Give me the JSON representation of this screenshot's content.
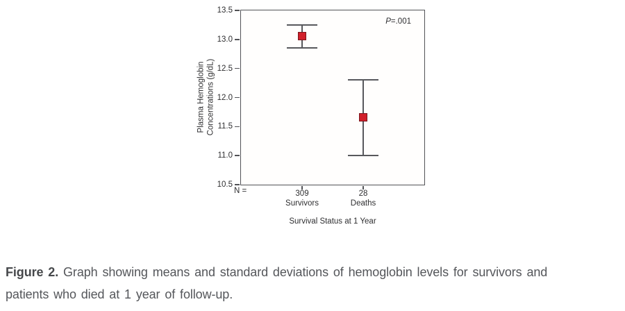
{
  "colors": {
    "axis": "#515256",
    "error_bar": "#57585c",
    "marker_fill": "#d1202b",
    "marker_border": "#7a151c",
    "tick_text": "#2e2e30",
    "caption_text": "#54565a",
    "background": "#ffffff"
  },
  "chart_data": {
    "type": "scatter",
    "subtype": "means-with-standard-deviation-error-bars",
    "title": "",
    "xlabel": "Survival Status at 1 Year",
    "ylabel": "Plasma Hemoglobin Concentrations (g/dL)",
    "ylabel_lines": [
      "Plasma Hemoglobin",
      "Concentrations (g/dL)"
    ],
    "ylim": [
      10.5,
      13.5
    ],
    "yticks": [
      "13.5",
      "13.0",
      "12.5",
      "12.0",
      "11.5",
      "11.0",
      "10.5"
    ],
    "grid": false,
    "legend": "none",
    "n_prefix": "N =",
    "annotation": {
      "p_italic": "P",
      "p_rest": "=.001"
    },
    "series": [
      {
        "group": "Survivors",
        "n": "309",
        "mean": 13.05,
        "upper": 13.25,
        "lower": 12.85
      },
      {
        "group": "Deaths",
        "n": "28",
        "mean": 11.65,
        "upper": 12.3,
        "lower": 11.0
      }
    ]
  },
  "caption": {
    "label": "Figure 2.",
    "line1": "Graph showing means and standard deviations of hemoglobin levels for survivors and",
    "line2": "patients who died at 1 year of follow-up."
  }
}
